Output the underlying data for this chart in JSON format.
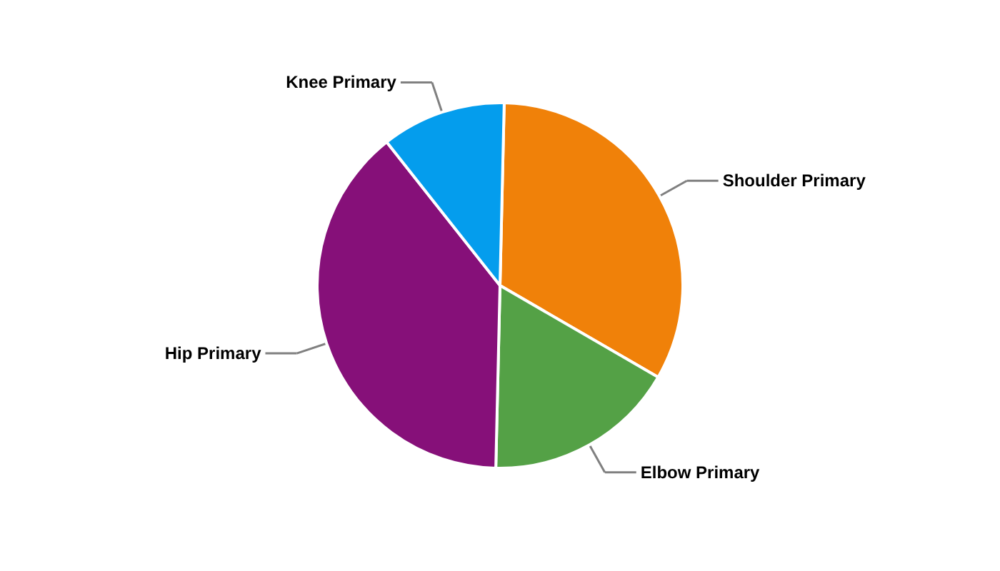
{
  "chart_data": {
    "type": "pie",
    "categories": [
      "Shoulder Primary",
      "Elbow Primary",
      "Hip Primary",
      "Knee Primary"
    ],
    "values": [
      33,
      17,
      39,
      11
    ],
    "colors": [
      "#f08109",
      "#54a146",
      "#861079",
      "#049ded"
    ]
  }
}
